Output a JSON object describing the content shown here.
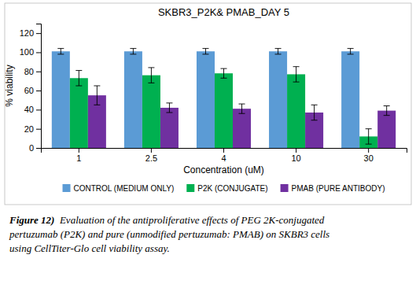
{
  "chart_data": {
    "type": "bar",
    "title": "SKBR3_P2K& PMAB_DAY 5",
    "xlabel": "Concentration (uM)",
    "ylabel": "% viability",
    "categories": [
      "1",
      "2.5",
      "4",
      "10",
      "30"
    ],
    "series": [
      {
        "name": "CONTROL (MEDIUM ONLY)",
        "color": "#5B9BD5",
        "values": [
          101,
          101,
          101,
          101,
          101
        ],
        "errors": [
          3,
          3,
          3,
          3,
          3
        ]
      },
      {
        "name": "P2K (CONJUGATE)",
        "color": "#00B050",
        "values": [
          73,
          76,
          78,
          77,
          12
        ],
        "errors": [
          8,
          8,
          5,
          8,
          8
        ]
      },
      {
        "name": "PMAB (PURE ANTIBODY)",
        "color": "#7030A0",
        "values": [
          55,
          42,
          41,
          37,
          39
        ],
        "errors": [
          10,
          5,
          5,
          8,
          5
        ]
      }
    ],
    "ylim": [
      0,
      130
    ],
    "yticks": [
      0,
      20,
      40,
      60,
      80,
      100,
      120
    ],
    "grid": false,
    "legend": "bottom",
    "caption_bold": "Figure 12)",
    "caption": [
      "  Evaluation of the antiproliferative effects of PEG 2K-conjugated",
      "pertuzumab (P2K) and pure (unmodified pertuzumab: PMAB) on SKBR3 cells",
      "using CellTiter-Glo cell viability assay."
    ]
  }
}
